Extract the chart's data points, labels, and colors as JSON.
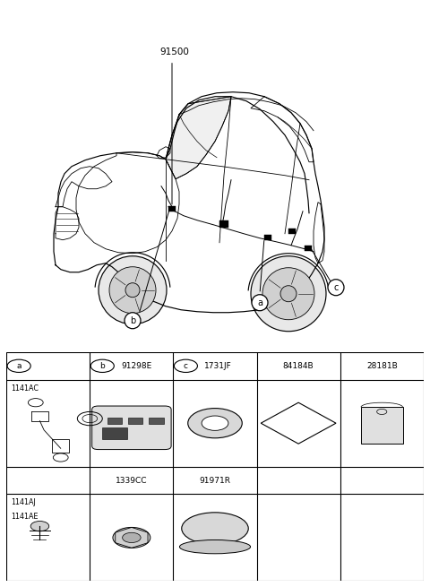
{
  "bg_color": "#ffffff",
  "car_label": "91500",
  "fig_width": 4.8,
  "fig_height": 6.55,
  "dpi": 100,
  "label_a": "a",
  "label_b": "b",
  "label_c": "c",
  "table_cols": 5,
  "col_headers": [
    "a",
    "b",
    "c",
    "84184B",
    "28181B"
  ],
  "col_header_codes": [
    "",
    "91298E",
    "1731JF",
    "",
    ""
  ],
  "row1_col1_label": "1141AC",
  "row3_col1_label": "1141AJ\n1141AE",
  "mid_row_col2": "1339CC",
  "mid_row_col3": "91971R"
}
